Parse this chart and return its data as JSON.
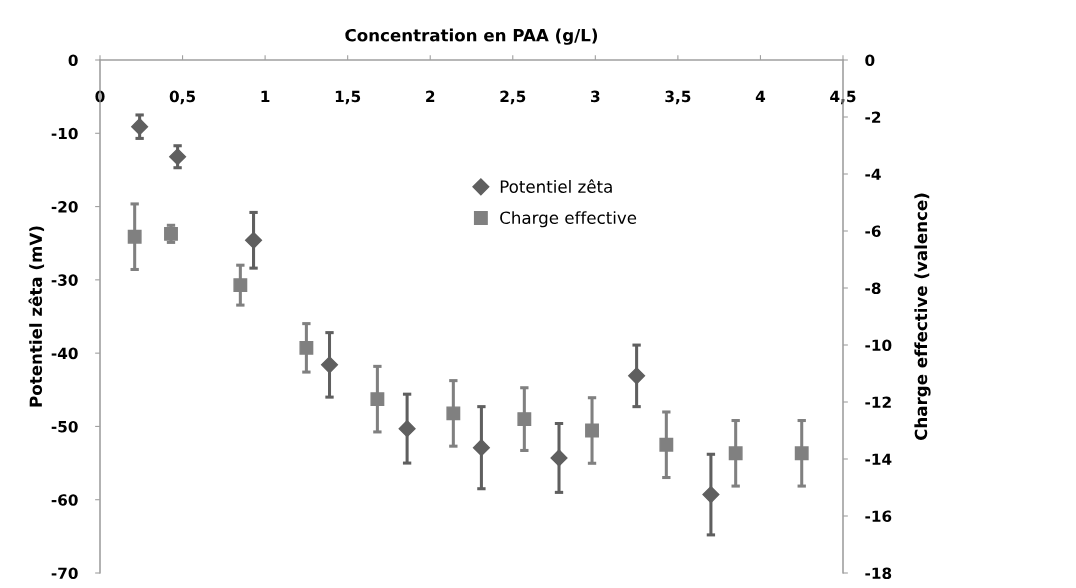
{
  "chart_data": {
    "type": "scatter",
    "xlabel": "Concentration en PAA (g/L)",
    "ylabel": "Potentiel zêta (mV)",
    "y2label": "Charge effective (valence)",
    "xlim": [
      0,
      4.5
    ],
    "xticks": [
      0,
      {
        "value": 0.5,
        "label": "0,5"
      },
      1,
      {
        "value": 1.5,
        "label": "1,5"
      },
      2,
      {
        "value": 2.5,
        "label": "2,5"
      },
      3,
      {
        "value": 3.5,
        "label": "3,5"
      },
      4,
      {
        "value": 4.5,
        "label": "4,5"
      }
    ],
    "ylim": [
      -70,
      0
    ],
    "yticks": [
      -70,
      -60,
      -50,
      -40,
      -30,
      -20,
      -10,
      0
    ],
    "y2lim": [
      -18,
      0
    ],
    "y2ticks": [
      -18,
      -16,
      -14,
      -12,
      -10,
      -8,
      -6,
      -4,
      -2,
      0
    ],
    "grid": false,
    "legend": "center",
    "series": [
      {
        "name": "Potentiel zêta",
        "color": "#5f5f5f",
        "marker": "diamond",
        "x": [
          0.24,
          0.47,
          0.93,
          1.39,
          1.86,
          2.31,
          2.78,
          3.25,
          3.7
        ],
        "values": [
          -9.1,
          -13.2,
          -24.6,
          -41.6,
          -50.3,
          -52.9,
          -54.3,
          -43.1,
          -59.3
        ],
        "errors": [
          1.6,
          1.5,
          3.8,
          4.4,
          4.7,
          5.6,
          4.7,
          4.2,
          5.5
        ]
      },
      {
        "name": "Charge effective",
        "color": "#808080",
        "marker": "square",
        "axis": "y2",
        "x": [
          0.21,
          0.43,
          0.85,
          1.25,
          1.68,
          2.14,
          2.57,
          2.98,
          3.43,
          3.85,
          4.25
        ],
        "values": [
          -6.2,
          -6.1,
          -7.9,
          -10.1,
          -11.9,
          -12.4,
          -12.6,
          -13.0,
          -13.5,
          -13.8,
          -13.8
        ],
        "errors": [
          1.15,
          0.3,
          0.7,
          0.85,
          1.15,
          1.15,
          1.1,
          1.15,
          1.15,
          1.15,
          1.15
        ]
      }
    ]
  }
}
